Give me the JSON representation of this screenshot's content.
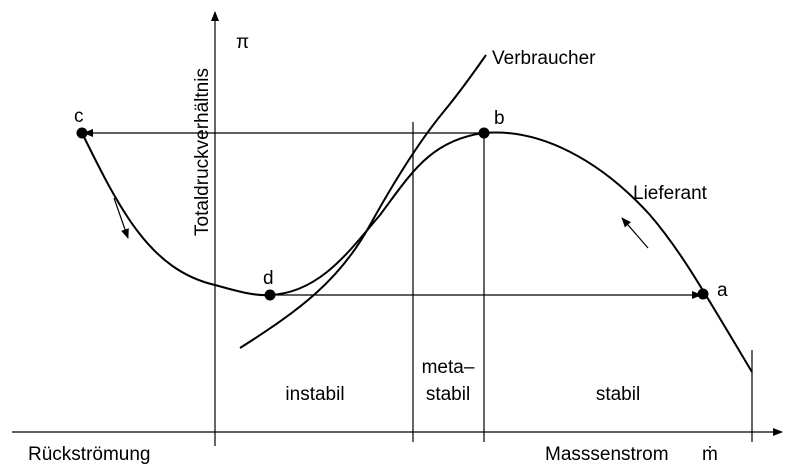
{
  "axes": {
    "x_label": "Masssenstrom",
    "x_symbol": "ṁ",
    "x_left_label": "Rückströmung",
    "y_label": "Totaldruckverhältnis",
    "y_symbol": "π"
  },
  "curves": {
    "consumer": "Verbraucher",
    "supplier": "Lieferant"
  },
  "points": {
    "a": "a",
    "b": "b",
    "c": "c",
    "d": "d"
  },
  "regions": {
    "unstable": "instabil",
    "metastable": [
      "meta–",
      "stabil"
    ],
    "stable": "stabil"
  }
}
